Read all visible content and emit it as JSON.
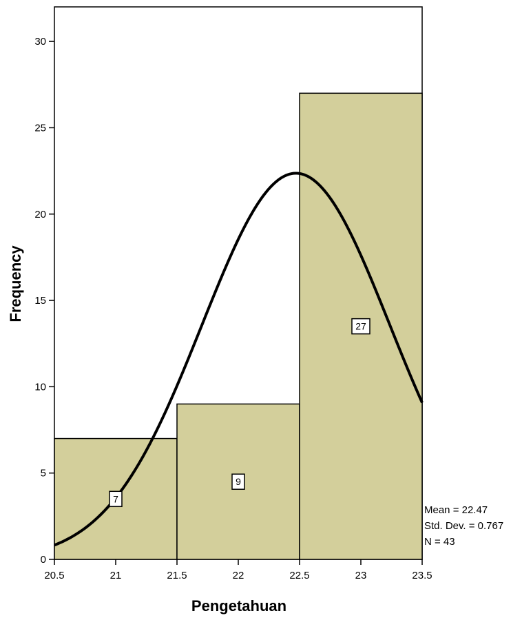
{
  "chart_data": {
    "type": "bar",
    "subtype": "histogram",
    "bins": [
      {
        "x0": 20.5,
        "x1": 21.5,
        "label": "7",
        "value": 7
      },
      {
        "x0": 21.5,
        "x1": 22.5,
        "label": "9",
        "value": 9
      },
      {
        "x0": 22.5,
        "x1": 23.5,
        "label": "27",
        "value": 27
      }
    ],
    "xlabel": "Pengetahuan",
    "ylabel": "Frequency",
    "xlim": [
      20.5,
      23.5
    ],
    "ylim": [
      0,
      32
    ],
    "x_ticks": [
      "20.5",
      "21",
      "21.5",
      "22",
      "22.5",
      "23",
      "23.5"
    ],
    "y_ticks": [
      "0",
      "5",
      "10",
      "15",
      "20",
      "25",
      "30"
    ],
    "normal_curve": {
      "mean": 22.47,
      "std": 0.767,
      "n": 43,
      "bin_width": 1
    },
    "stats": {
      "mean_text": "Mean = 22.47",
      "std_text": "Std. Dev. = 0.767",
      "n_text": "N = 43"
    },
    "colors": {
      "bar_fill": "#d3cf9b",
      "bar_stroke": "#000000",
      "curve": "#000000"
    },
    "grid": false
  }
}
